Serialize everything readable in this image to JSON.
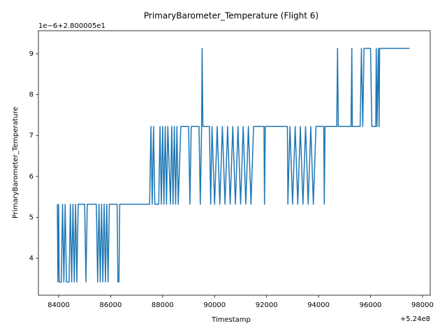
{
  "chart_data": {
    "type": "line",
    "title": "PrimaryBarometer_Temperature (Flight 6)",
    "xlabel": "Timestamp",
    "ylabel": "PrimaryBarometer_Temperature",
    "x_offset_text": "+5.24e8",
    "y_offset_text": "1e−6+2.800005e1",
    "color": "#1f77b4",
    "grid": false,
    "xlim": [
      83221,
      98297
    ],
    "ylim": [
      3.096,
      9.563
    ],
    "xticks": [
      84000,
      86000,
      88000,
      90000,
      92000,
      94000,
      96000,
      98000
    ],
    "yticks": [
      4,
      5,
      6,
      7,
      8,
      9
    ],
    "x": [
      83950,
      83970,
      84000,
      84020,
      84100,
      84150,
      84200,
      84250,
      84300,
      84400,
      84450,
      84500,
      84550,
      84600,
      84650,
      84700,
      84750,
      85000,
      85050,
      85100,
      85450,
      85500,
      85550,
      85600,
      85650,
      85700,
      85750,
      85800,
      85850,
      85900,
      85950,
      86250,
      86280,
      86320,
      86350,
      87500,
      87550,
      87600,
      87650,
      87700,
      87850,
      87900,
      87950,
      88000,
      88050,
      88100,
      88150,
      88200,
      88300,
      88350,
      88400,
      88450,
      88500,
      88550,
      88600,
      88700,
      89000,
      89050,
      89100,
      89400,
      89450,
      89500,
      89520,
      89550,
      89800,
      89850,
      89900,
      90000,
      90100,
      90200,
      90300,
      90400,
      90500,
      90600,
      90700,
      90800,
      90900,
      91000,
      91100,
      91200,
      91300,
      91400,
      91500,
      91900,
      91920,
      91950,
      92800,
      92820,
      92900,
      93000,
      93100,
      93200,
      93300,
      93400,
      93500,
      93600,
      93700,
      93800,
      93900,
      94200,
      94220,
      94250,
      94700,
      94730,
      94760,
      95250,
      95280,
      95300,
      95600,
      95650,
      95700,
      95750,
      96000,
      96050,
      96200,
      96220,
      96250,
      96300,
      96330,
      96350,
      97500
    ],
    "values": [
      5.32,
      3.42,
      5.32,
      3.42,
      3.42,
      5.32,
      3.42,
      5.32,
      3.42,
      3.42,
      5.32,
      3.42,
      5.32,
      3.42,
      5.32,
      3.42,
      5.32,
      5.32,
      3.42,
      5.32,
      5.32,
      3.42,
      5.32,
      3.42,
      5.32,
      3.42,
      5.32,
      3.42,
      5.32,
      3.42,
      5.32,
      5.32,
      3.42,
      3.42,
      5.32,
      5.32,
      7.22,
      5.32,
      7.22,
      5.32,
      5.32,
      7.22,
      5.32,
      7.22,
      5.32,
      7.22,
      5.32,
      7.22,
      5.32,
      7.22,
      5.32,
      7.22,
      5.32,
      7.22,
      5.32,
      7.22,
      7.22,
      5.32,
      7.22,
      7.22,
      5.32,
      7.22,
      9.13,
      7.22,
      7.22,
      5.32,
      7.22,
      5.32,
      7.22,
      5.32,
      7.22,
      5.32,
      7.22,
      5.32,
      7.22,
      5.32,
      7.22,
      5.32,
      7.22,
      5.32,
      7.22,
      5.32,
      7.22,
      7.22,
      5.32,
      7.22,
      7.22,
      5.32,
      7.22,
      5.32,
      7.22,
      5.32,
      7.22,
      5.32,
      7.22,
      5.32,
      7.22,
      5.32,
      7.22,
      7.22,
      5.32,
      7.22,
      7.22,
      9.13,
      7.22,
      7.22,
      9.13,
      7.22,
      7.22,
      9.13,
      7.22,
      9.13,
      9.13,
      7.22,
      7.22,
      9.13,
      7.22,
      9.13,
      7.22,
      9.13,
      9.13
    ]
  }
}
